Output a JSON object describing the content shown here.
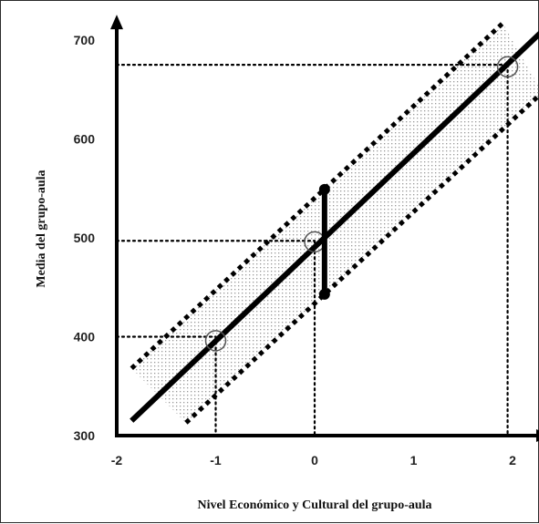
{
  "chart_data": {
    "type": "line",
    "xlabel": "Nivel Económico y Cultural del grupo-aula",
    "ylabel": "Media del grupo-aula",
    "xlim": [
      -2,
      2.35
    ],
    "ylim": [
      300,
      722
    ],
    "x_ticks": [
      "-2",
      "-1",
      "0",
      "1",
      "2"
    ],
    "y_ticks": [
      "300",
      "400",
      "500",
      "600",
      "700"
    ],
    "grid": false,
    "legend": "none",
    "series": [
      {
        "role": "regression-line",
        "style": "solid",
        "x": [
          -1.85,
          2.3
        ],
        "y": [
          315,
          709
        ]
      },
      {
        "role": "upper-band",
        "style": "dashed",
        "x": [
          -1.85,
          1.9
        ],
        "y": [
          368,
          717
        ]
      },
      {
        "role": "lower-band",
        "style": "dashed",
        "x": [
          -1.3,
          2.3
        ],
        "y": [
          313,
          647
        ]
      }
    ],
    "points": [
      {
        "x": -1,
        "y": 396
      },
      {
        "x": 0,
        "y": 496
      },
      {
        "x": 1.95,
        "y": 673
      }
    ],
    "guides": [
      {
        "x": -1,
        "y": 400
      },
      {
        "x": 0,
        "y": 497
      },
      {
        "x": 1.95,
        "y": 675
      }
    ],
    "range_marker": {
      "x": 0.1,
      "y_top": 549,
      "y_bottom": 443
    },
    "colors": {
      "line": "#000000",
      "band_fill": "#d4d4d4",
      "axis": "#000000"
    }
  }
}
